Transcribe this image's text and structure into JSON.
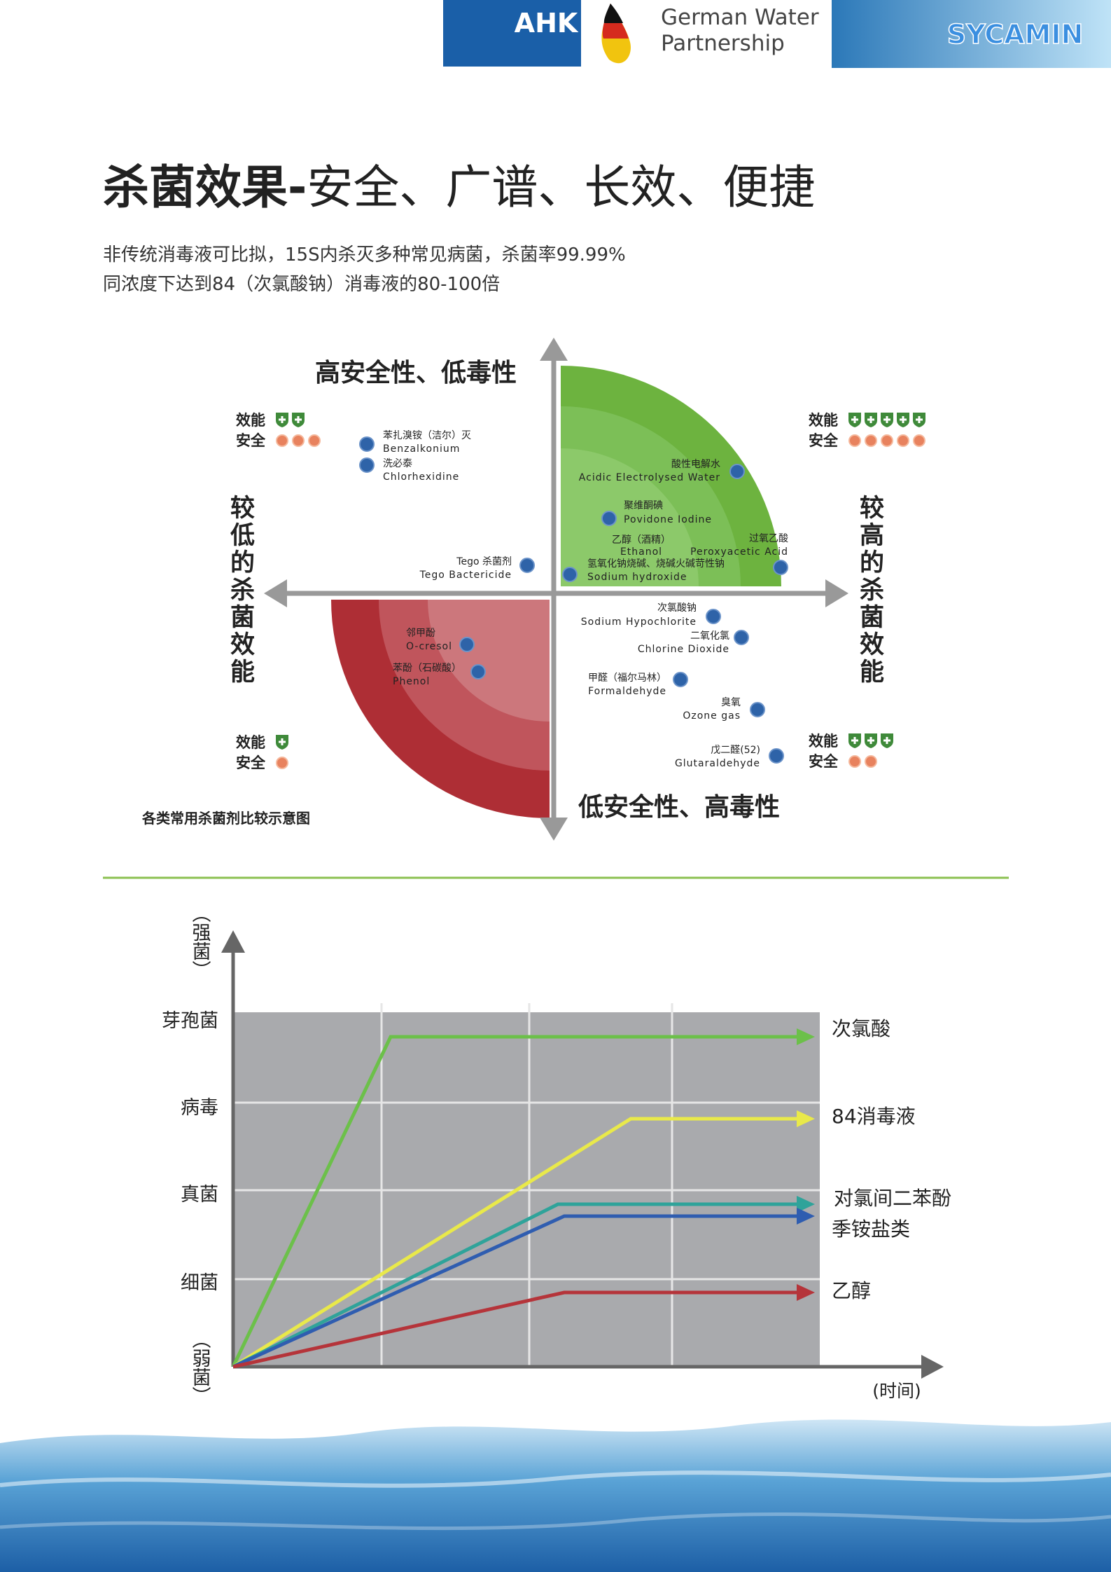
{
  "header": {
    "logos": [
      "AHK",
      "German Water",
      "Partnership",
      "SYCAMIN"
    ]
  },
  "title": {
    "bold": "杀菌效果-",
    "rest": "安全、广谱、长效、便捷"
  },
  "subtitle": [
    "非传统消毒液可比拟，15S内杀灭多种常见病菌，杀菌率99.99%",
    "同浓度下达到84（次氯酸钠）消毒液的80-100倍"
  ],
  "quadrant": {
    "top": "高安全性、低毒性",
    "bottom": "低安全性、高毒性",
    "left": "较低的杀菌效能",
    "right": "较高的杀菌效能",
    "legend_labels": {
      "efficacy": "效能",
      "safety": "安全"
    },
    "ratings": [
      {
        "efficacy": 2,
        "safety": 3
      },
      {
        "efficacy": 5,
        "safety": 5
      },
      {
        "efficacy": 1,
        "safety": 1
      },
      {
        "efficacy": 3,
        "safety": 2
      }
    ],
    "agents": [
      {
        "cn": "苯扎溴铵（洁尔）灭",
        "en": "Benzalkonium"
      },
      {
        "cn": "洗必泰",
        "en": "Chlorhexidine"
      },
      {
        "cn": "酸性电解水",
        "en": "Acidic Electrolysed Water"
      },
      {
        "cn": "聚维酮碘",
        "en": "Povidone Iodine"
      },
      {
        "cn": "乙醇（酒精）",
        "en": "Ethanol"
      },
      {
        "cn": "过氧乙酸",
        "en": "Peroxyacetic Acid"
      },
      {
        "cn": "氢氧化钠烧碱、烧碱火碱苛性钠",
        "en": "Sodium hydroxide"
      },
      {
        "cn": "Tego 杀菌剂",
        "en": "Tego Bactericide"
      },
      {
        "cn": "邻甲酚",
        "en": "O-cresol"
      },
      {
        "cn": "苯酚（石碳酸）",
        "en": "Phenol"
      },
      {
        "cn": "次氯酸钠",
        "en": "Sodium Hypochlorite"
      },
      {
        "cn": "二氧化氯",
        "en": "Chlorine Dioxide"
      },
      {
        "cn": "甲醛（福尔马林）",
        "en": "Formaldehyde"
      },
      {
        "cn": "臭氧",
        "en": "Ozone gas"
      },
      {
        "cn": "戊二醛(52)",
        "en": "Glutaraldehyde"
      }
    ],
    "caption": "各类常用杀菌剂比较示意图"
  },
  "spectrum": {
    "levels": [
      "芽孢菌",
      "病毒",
      "真菌",
      "细菌"
    ],
    "strong": "（强菌）",
    "weak": "（弱菌）",
    "time": "(时间)",
    "lines": [
      "次氯酸",
      "84消毒液",
      "对氯间二苯酚",
      "季铵盐类",
      "乙醇"
    ]
  }
}
